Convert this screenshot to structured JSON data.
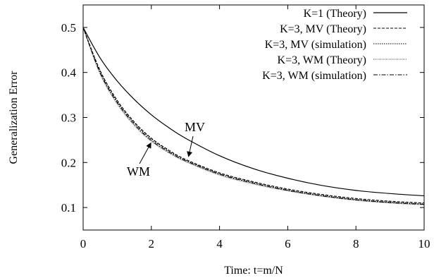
{
  "chart_data": {
    "type": "line",
    "title": "",
    "xlabel": "Time: t=m/N",
    "ylabel": "Generalization Error",
    "xlim": [
      0,
      10
    ],
    "ylim": [
      0.05,
      0.55
    ],
    "x_ticks": [
      "0",
      "2",
      "4",
      "6",
      "8",
      "10"
    ],
    "y_ticks": [
      "0.1",
      "0.2",
      "0.3",
      "0.4",
      "0.5"
    ],
    "grid": false,
    "legend_position": "top-right",
    "x": [
      0,
      0.5,
      1,
      1.5,
      2,
      2.5,
      3,
      4,
      5,
      6,
      7,
      8,
      9,
      10
    ],
    "series": [
      {
        "name": "K=1 (Theory)",
        "style": "solid",
        "values": [
          0.5,
          0.432,
          0.381,
          0.34,
          0.306,
          0.278,
          0.254,
          0.215,
          0.186,
          0.165,
          0.149,
          0.138,
          0.131,
          0.126
        ]
      },
      {
        "name": "K=3, MV (Theory)",
        "style": "dashed",
        "values": [
          0.5,
          0.404,
          0.338,
          0.29,
          0.254,
          0.228,
          0.207,
          0.177,
          0.157,
          0.141,
          0.129,
          0.12,
          0.114,
          0.11
        ]
      },
      {
        "name": "K=3, MV (simulation)",
        "style": "dotted",
        "values": [
          0.5,
          0.402,
          0.336,
          0.288,
          0.252,
          0.226,
          0.205,
          0.175,
          0.155,
          0.139,
          0.127,
          0.118,
          0.112,
          0.108
        ]
      },
      {
        "name": "K=3, WM (Theory)",
        "style": "fine-dotted",
        "values": [
          0.5,
          0.396,
          0.33,
          0.282,
          0.247,
          0.222,
          0.202,
          0.172,
          0.152,
          0.137,
          0.125,
          0.116,
          0.11,
          0.106
        ]
      },
      {
        "name": "K=3, WM (simulation)",
        "style": "dash-dot",
        "values": [
          0.5,
          0.399,
          0.333,
          0.285,
          0.249,
          0.224,
          0.204,
          0.174,
          0.154,
          0.138,
          0.126,
          0.117,
          0.111,
          0.107
        ]
      }
    ],
    "annotations": [
      {
        "text": "MV",
        "x": 3.05,
        "y": 0.207
      },
      {
        "text": "WM",
        "x": 2.05,
        "y": 0.248
      }
    ]
  }
}
